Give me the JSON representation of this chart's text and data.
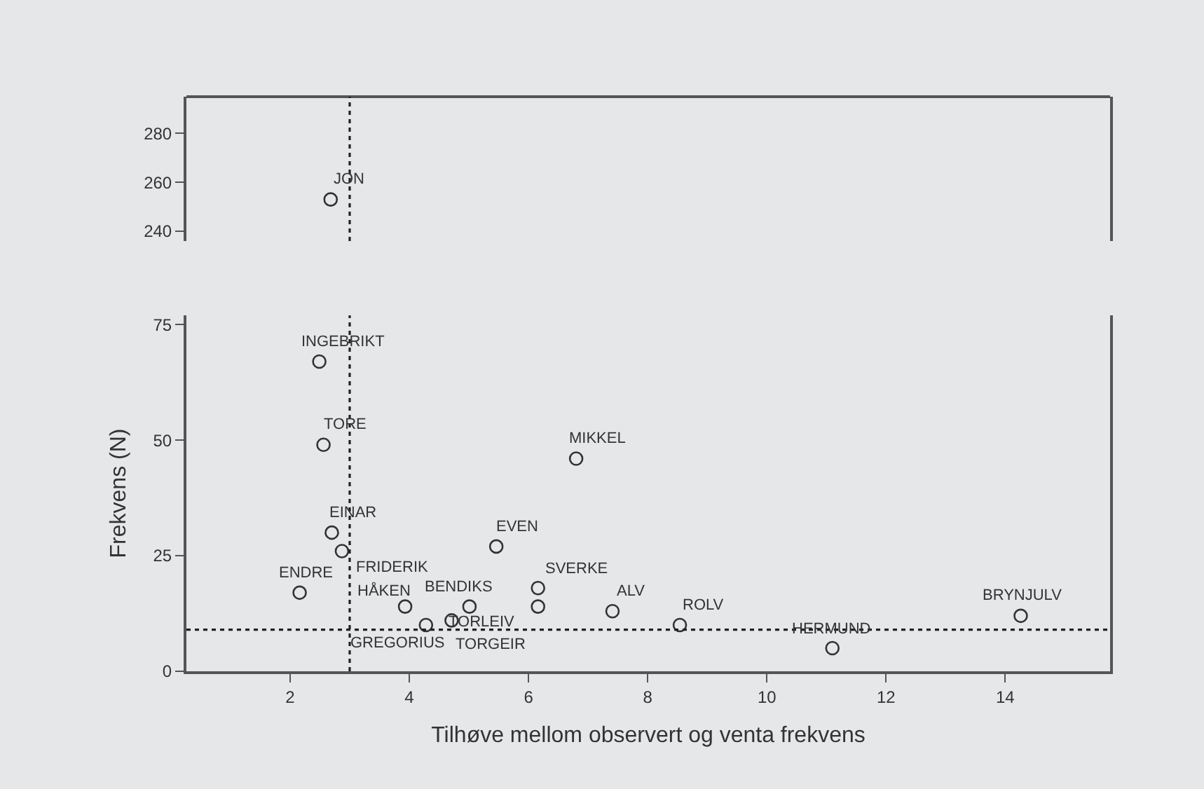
{
  "chart_data": [
    {
      "type": "scatter",
      "x": [
        2.68
      ],
      "values": [
        253
      ],
      "color": "#333333",
      "marker": "circle",
      "xlim": [
        0.26,
        15.76
      ],
      "ylim": [
        236,
        295
      ],
      "yticks": [
        240,
        260,
        280
      ],
      "tick_labels": "y",
      "grid": false,
      "ref_lines": [
        {
          "axis": "x",
          "value": 3,
          "line_style": "dotted",
          "color": "#222222"
        }
      ],
      "annotations": [
        {
          "text": "JON",
          "x": 2.68,
          "y": 253
        }
      ]
    },
    {
      "type": "scatter",
      "xlabel": "Tilhøve mellom observert og venta frekvens",
      "ylabel": "Frekvens (N)",
      "color": "#333333",
      "marker": "circle",
      "grid": false,
      "x": [
        2.49,
        2.56,
        6.8,
        2.7,
        2.87,
        5.46,
        2.16,
        3.93,
        4.28,
        4.71,
        5.01,
        6.16,
        6.16,
        7.41,
        8.54,
        11.1,
        14.26
      ],
      "values": [
        67,
        49,
        46,
        30,
        26,
        27,
        17,
        14,
        10,
        11,
        14,
        18,
        14,
        13,
        10,
        5,
        12
      ],
      "xlim": [
        0.26,
        15.76
      ],
      "xticks": [
        2,
        4,
        6,
        8,
        10,
        12,
        14
      ],
      "ylim": [
        0,
        77
      ],
      "yticks": [
        0,
        25,
        50,
        75
      ],
      "ref_lines": [
        {
          "axis": "x",
          "value": 3,
          "line_style": "dotted",
          "color": "#222222"
        },
        {
          "axis": "y",
          "value": 9,
          "line_style": "dotted",
          "color": "#222222"
        }
      ],
      "annotations": [
        {
          "text": "INGEBRIKT",
          "x": 2.49,
          "y": 67
        },
        {
          "text": "TORE",
          "x": 2.56,
          "y": 49
        },
        {
          "text": "MIKKEL",
          "x": 6.8,
          "y": 46
        },
        {
          "text": "EINAR",
          "x": 2.7,
          "y": 30
        },
        {
          "text": "FRIDERIK",
          "x": 2.87,
          "y": 26
        },
        {
          "text": "EVEN",
          "x": 5.46,
          "y": 27
        },
        {
          "text": "ENDRE",
          "x": 2.16,
          "y": 17
        },
        {
          "text": "HÅKEN",
          "x": 3.93,
          "y": 14
        },
        {
          "text": "GREGORIUS",
          "x": 4.28,
          "y": 10
        },
        {
          "text": "TORGEIR",
          "x": 4.71,
          "y": 11
        },
        {
          "text": "BENDIKS",
          "x": 5.01,
          "y": 14
        },
        {
          "text": "SVERKE",
          "x": 6.16,
          "y": 18
        },
        {
          "text": "TORLEIV",
          "x": 6.16,
          "y": 14
        },
        {
          "text": "ALV",
          "x": 7.41,
          "y": 13
        },
        {
          "text": "ROLV",
          "x": 8.54,
          "y": 10
        },
        {
          "text": "HERMUND",
          "x": 11.1,
          "y": 5
        },
        {
          "text": "BRYNJULV",
          "x": 14.26,
          "y": 12
        }
      ]
    }
  ]
}
